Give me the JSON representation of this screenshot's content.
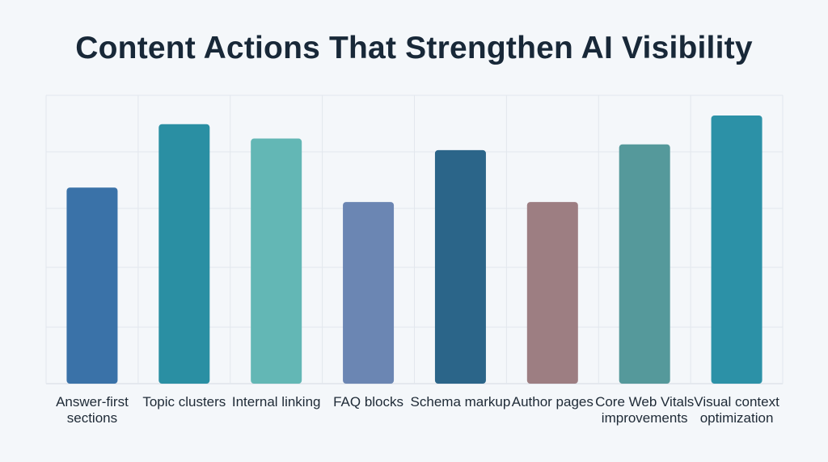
{
  "title": "Content Actions That Strengthen AI Visibility",
  "chart_data": {
    "type": "bar",
    "title": "Content Actions That Strengthen AI Visibility",
    "categories": [
      "Answer-first sections",
      "Topic clusters",
      "Internal linking",
      "FAQ blocks",
      "Schema markup",
      "Author pages",
      "Core Web Vitals improvements",
      "Visual context optimization"
    ],
    "values": [
      68,
      90,
      85,
      63,
      81,
      63,
      83,
      93
    ],
    "colors": [
      "#3a72a8",
      "#2a8fa3",
      "#63b7b5",
      "#6b86b3",
      "#2b6589",
      "#9d7e82",
      "#55999b",
      "#2c91a7"
    ],
    "ylim": [
      0,
      100
    ],
    "xlabel": "",
    "ylabel": "",
    "grid": true,
    "axis_tick_labels_shown": false
  }
}
